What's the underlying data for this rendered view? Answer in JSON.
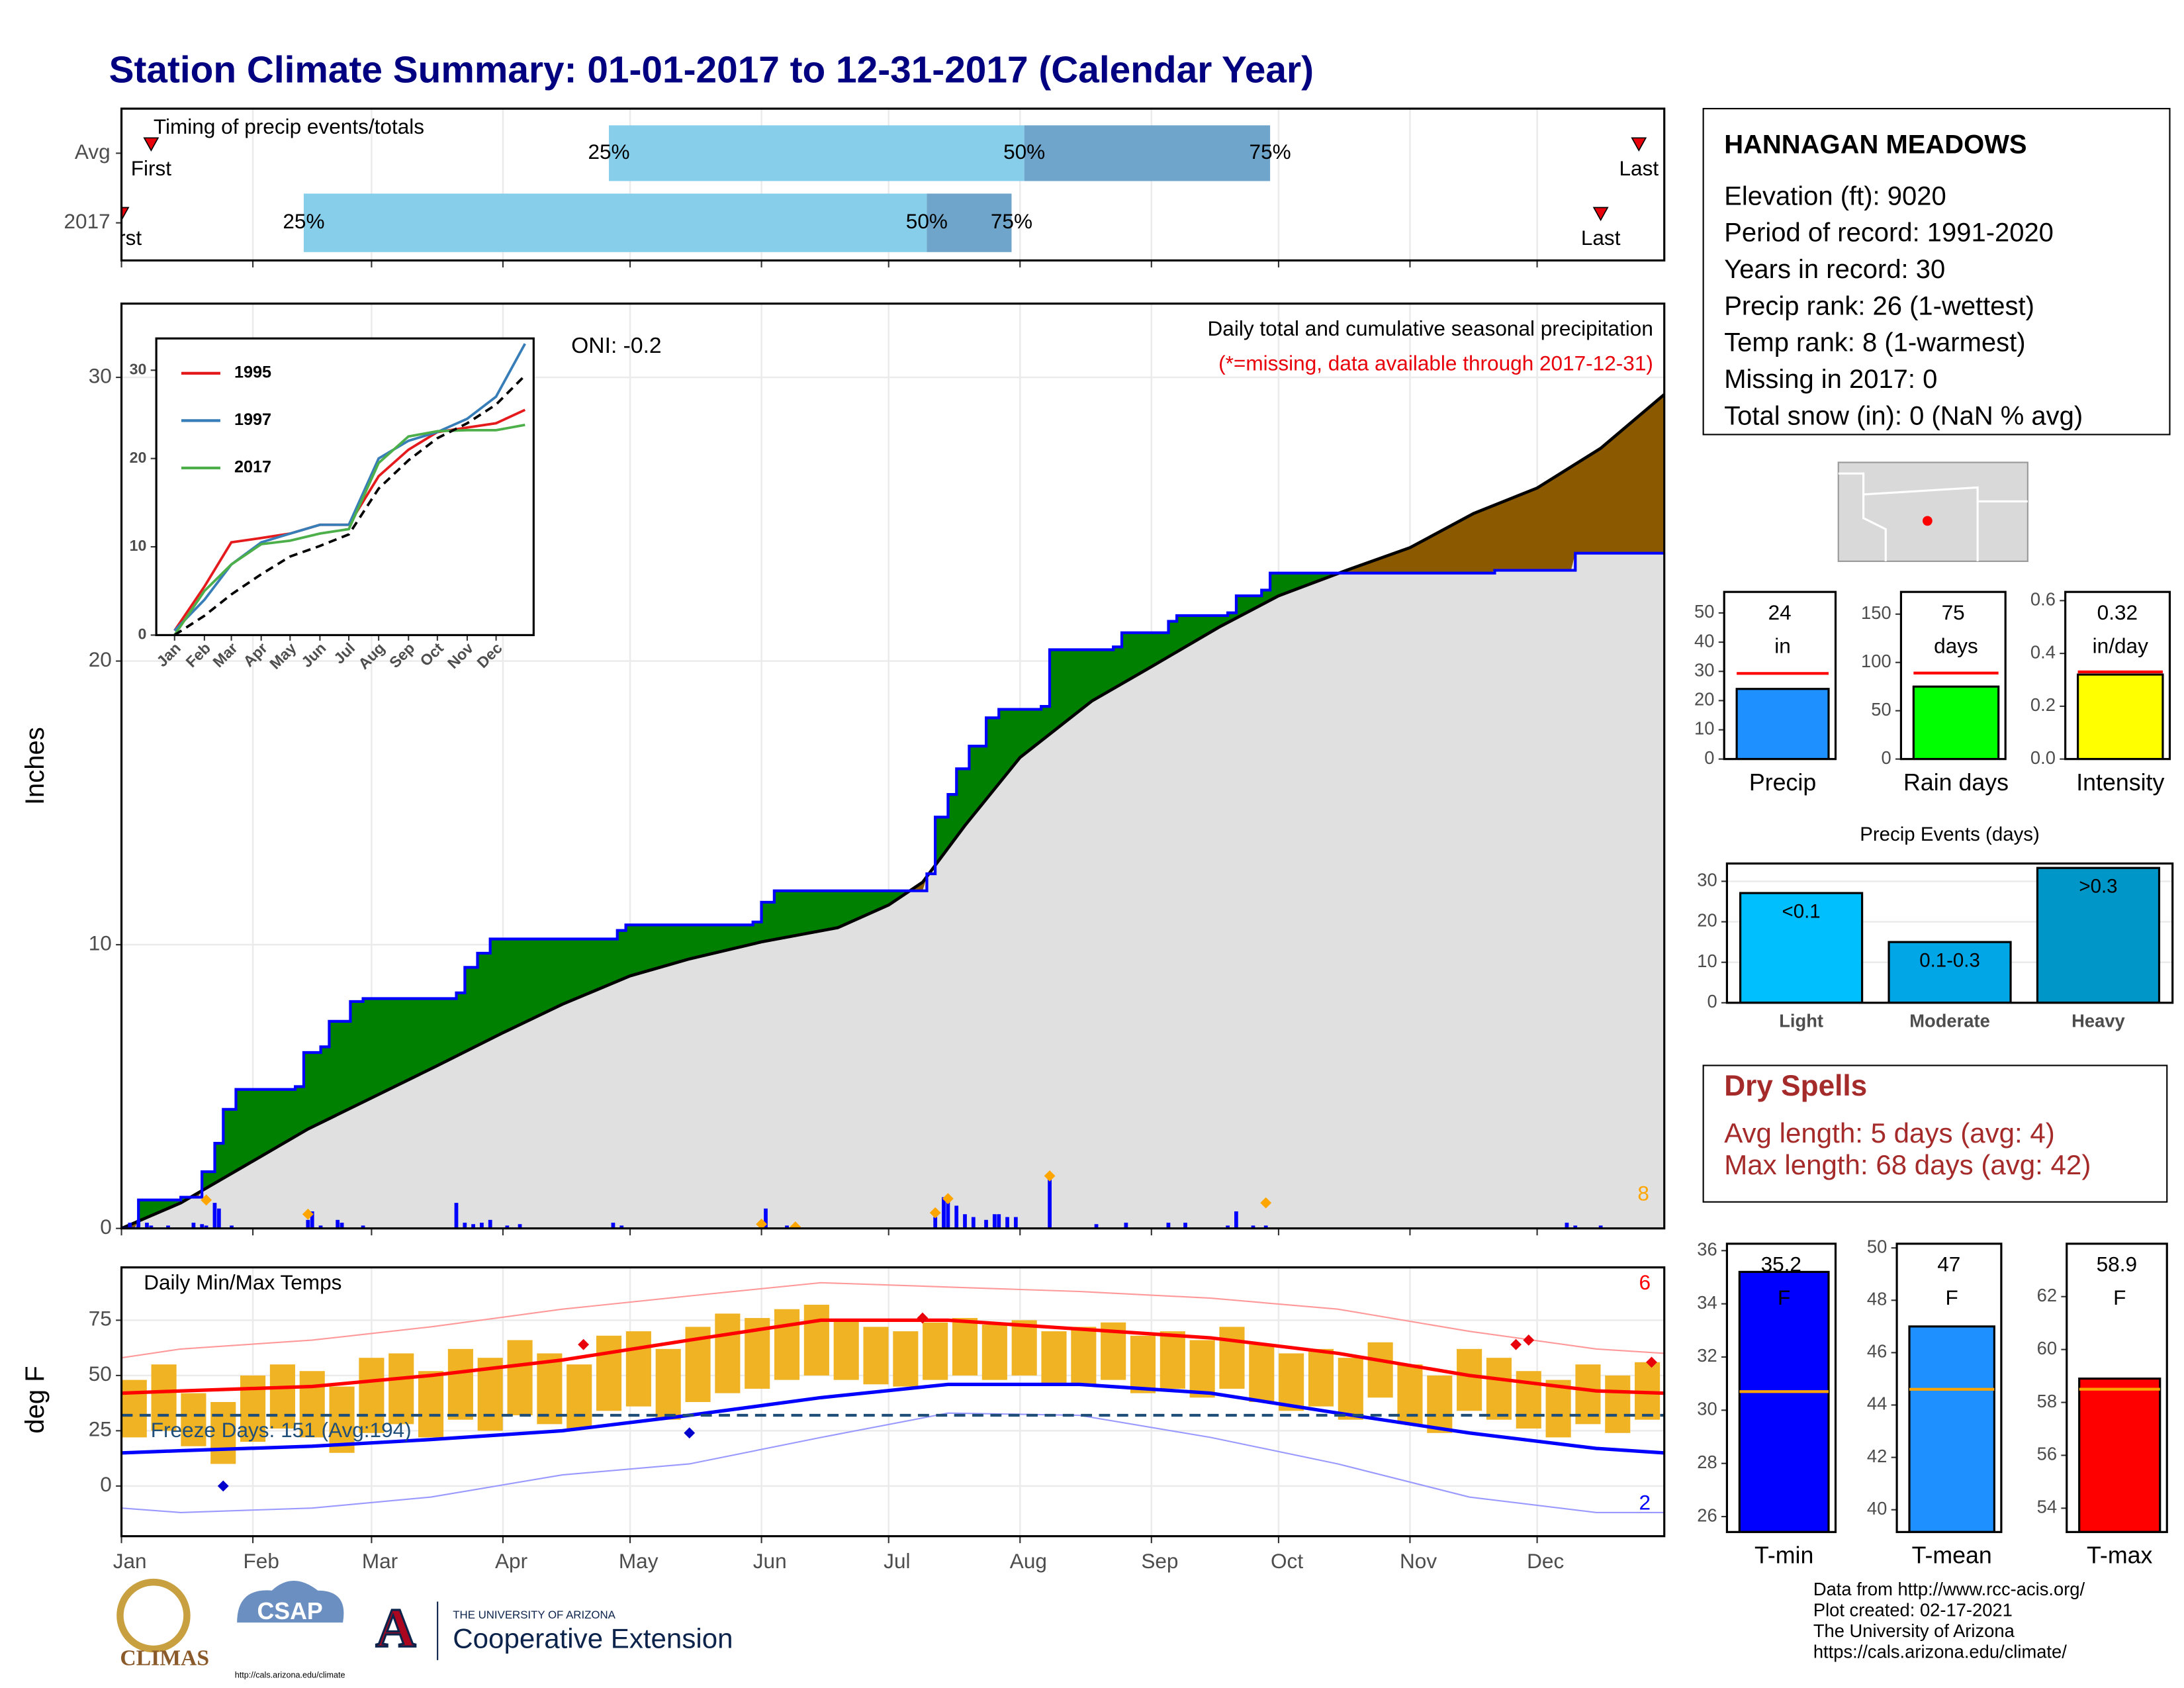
{
  "title": "Station Climate Summary: 01-01-2017 to 12-31-2017 (Calendar Year)",
  "station": {
    "name": "HANNAGAN MEADOWS",
    "lines": [
      "Elevation (ft): 9020",
      "Period of record: 1991-2020",
      "Years in record: 30",
      "Precip rank: 26 (1-wettest)",
      "Temp rank: 8 (1-warmest)",
      "Missing in 2017: 0",
      "Total snow (in): 0 (NaN % avg)"
    ]
  },
  "dry_spells": {
    "title": "Dry Spells",
    "lines": [
      "Avg length: 5 days (avg: 4)",
      "Max length: 68 days (avg: 42)"
    ]
  },
  "footer": [
    "Data from http://www.rcc-acis.org/",
    "Plot created: 02-17-2021",
    "The University of Arizona",
    "https://cals.arizona.edu/climate/"
  ],
  "logos": {
    "climas": "CLIMAS",
    "csap": "CSAP",
    "csap_url": "http://cals.arizona.edu/climate",
    "university": "THE UNIVERSITY OF ARIZONA",
    "extension": "Cooperative Extension"
  },
  "chart_data": [
    {
      "type": "timing",
      "title": "Timing of precip events/totals",
      "categories": [
        "Avg",
        "2017"
      ],
      "markers": [
        "First",
        "25%",
        "50%",
        "75%",
        "Last"
      ],
      "values": [
        [
          8,
          116,
          214,
          272,
          359
        ],
        [
          1,
          44,
          191,
          211,
          350
        ]
      ],
      "colors": [
        "#87ceeb",
        "#6fa5cb"
      ],
      "marker_color": "#e8000b",
      "xlim": [
        1,
        365
      ],
      "grid": true
    },
    {
      "type": "area",
      "ylabel": "Inches",
      "xlim": [
        1,
        365
      ],
      "ylim": [
        0,
        32.6
      ],
      "yticks": [
        0,
        10,
        20,
        30
      ],
      "grid": true,
      "annotations": [
        "ONI: -0.2",
        "Daily total and cumulative seasonal precipitation",
        "(*=missing, data available through 2017-12-31)"
      ],
      "series": [
        {
          "color": "#0000ff",
          "x": [
            1,
            5,
            15,
            20,
            23,
            25,
            28,
            42,
            44,
            48,
            50,
            55,
            58,
            80,
            82,
            85,
            88,
            118,
            120,
            150,
            152,
            155,
            190,
            191,
            193,
            196,
            198,
            201,
            205,
            208,
            218,
            220,
            235,
            237,
            248,
            250,
            262,
            264,
            270,
            272,
            290,
            325,
            342,
            344,
            365
          ],
          "values": [
            0,
            1.0,
            1.1,
            2.0,
            3.0,
            4.2,
            4.9,
            5.0,
            6.2,
            6.4,
            7.3,
            8.0,
            8.1,
            8.3,
            9.2,
            9.7,
            10.2,
            10.5,
            10.7,
            10.8,
            11.5,
            11.9,
            11.9,
            12.5,
            14.5,
            15.3,
            16.2,
            17.0,
            18.0,
            18.3,
            18.4,
            20.4,
            20.5,
            21.0,
            21.4,
            21.6,
            21.7,
            22.3,
            22.5,
            23.1,
            23.1,
            23.2,
            23.2,
            23.8,
            23.8
          ]
        },
        {
          "color": "#000000",
          "x": [
            1,
            15,
            30,
            45,
            60,
            75,
            91,
            105,
            121,
            135,
            152,
            170,
            182,
            190,
            200,
            213,
            230,
            244,
            260,
            274,
            290,
            305,
            320,
            335,
            350,
            365
          ],
          "values": [
            0,
            0.9,
            2.2,
            3.5,
            4.6,
            5.7,
            6.9,
            7.9,
            8.9,
            9.5,
            10.1,
            10.6,
            11.4,
            12.2,
            14.2,
            16.6,
            18.6,
            19.8,
            21.2,
            22.3,
            23.2,
            24.0,
            25.2,
            26.1,
            27.5,
            29.4
          ]
        }
      ],
      "fill_colors": {
        "above": "#008000",
        "below": "#8b5a00",
        "base": "#e0e0e0"
      },
      "daily": {
        "color": "#0000ff",
        "x": [
          3,
          5,
          7,
          8,
          12,
          18,
          20,
          21,
          23,
          24,
          27,
          45,
          46,
          48,
          52,
          53,
          58,
          80,
          82,
          84,
          86,
          88,
          92,
          95,
          117,
          119,
          152,
          153,
          158,
          160,
          193,
          195,
          196,
          198,
          200,
          202,
          205,
          207,
          208,
          210,
          212,
          220,
          231,
          238,
          248,
          252,
          262,
          264,
          268,
          271,
          342,
          344,
          350
        ],
        "values": [
          0.2,
          0.3,
          0.2,
          0.1,
          0.1,
          0.2,
          0.15,
          0.1,
          0.9,
          0.7,
          0.1,
          0.3,
          0.6,
          0.1,
          0.3,
          0.2,
          0.1,
          0.9,
          0.2,
          0.15,
          0.2,
          0.3,
          0.1,
          0.15,
          0.2,
          0.1,
          0.25,
          0.7,
          0.1,
          0.05,
          0.4,
          1.1,
          1.0,
          0.8,
          0.5,
          0.4,
          0.3,
          0.5,
          0.5,
          0.4,
          0.4,
          1.8,
          0.15,
          0.2,
          0.2,
          0.2,
          0.1,
          0.6,
          0.1,
          0.1,
          0.2,
          0.1,
          0.1
        ]
      },
      "highlight": {
        "color": "#ffa500",
        "x": [
          21,
          45,
          152,
          160,
          193,
          196,
          220,
          271
        ],
        "values": [
          1.0,
          0.5,
          0.15,
          0.05,
          0.55,
          1.05,
          1.85,
          0.9
        ]
      },
      "highlight_count": 8
    },
    {
      "type": "range",
      "title": "Daily Min/Max Temps",
      "ylabel": "deg F",
      "xlim": [
        1,
        365
      ],
      "ylim": [
        -22.7,
        98.9
      ],
      "yticks": [
        0,
        25,
        50,
        75
      ],
      "grid": true,
      "xticks": [
        {
          "value": 1,
          "label": "Jan"
        },
        {
          "value": 32,
          "label": "Feb"
        },
        {
          "value": 60,
          "label": "Mar"
        },
        {
          "value": 91,
          "label": "Apr"
        },
        {
          "value": 121,
          "label": "May"
        },
        {
          "value": 152,
          "label": "Jun"
        },
        {
          "value": 182,
          "label": "Jul"
        },
        {
          "value": 213,
          "label": "Aug"
        },
        {
          "value": 244,
          "label": "Sep"
        },
        {
          "value": 274,
          "label": "Oct"
        },
        {
          "value": 305,
          "label": "Nov"
        },
        {
          "value": 335,
          "label": "Dec"
        }
      ],
      "bars": {
        "color": "#f0b323",
        "x": [
          4,
          11,
          18,
          25,
          32,
          39,
          46,
          53,
          60,
          67,
          74,
          81,
          88,
          95,
          102,
          109,
          116,
          123,
          130,
          137,
          144,
          151,
          158,
          165,
          172,
          179,
          186,
          193,
          200,
          207,
          214,
          221,
          228,
          235,
          242,
          249,
          256,
          263,
          270,
          277,
          284,
          291,
          298,
          305,
          312,
          319,
          326,
          333,
          340,
          347,
          354,
          361
        ],
        "low": [
          22,
          25,
          18,
          10,
          20,
          26,
          22,
          15,
          24,
          28,
          22,
          30,
          25,
          32,
          28,
          26,
          34,
          36,
          30,
          38,
          42,
          44,
          48,
          50,
          48,
          46,
          45,
          48,
          50,
          48,
          50,
          46,
          46,
          48,
          42,
          44,
          40,
          44,
          38,
          34,
          36,
          30,
          40,
          28,
          24,
          34,
          30,
          26,
          22,
          28,
          24,
          30
        ],
        "high": [
          48,
          55,
          42,
          38,
          50,
          55,
          52,
          45,
          58,
          60,
          52,
          62,
          58,
          66,
          60,
          55,
          68,
          70,
          62,
          72,
          78,
          76,
          80,
          82,
          75,
          72,
          70,
          74,
          76,
          73,
          75,
          70,
          72,
          74,
          68,
          70,
          66,
          72,
          64,
          60,
          62,
          58,
          65,
          55,
          50,
          62,
          58,
          52,
          48,
          55,
          50,
          56
        ]
      },
      "series": [
        {
          "color": "#ff0000",
          "width": 2.5,
          "x": [
            1,
            15,
            46,
            74,
            105,
            135,
            166,
            196,
            227,
            258,
            288,
            319,
            349,
            365
          ],
          "values": [
            42,
            43,
            45,
            50,
            57,
            66,
            75,
            75,
            71,
            67,
            60,
            50,
            43,
            42
          ]
        },
        {
          "color": "#0000ff",
          "width": 2.5,
          "x": [
            1,
            15,
            46,
            74,
            105,
            135,
            166,
            196,
            227,
            258,
            288,
            319,
            349,
            365
          ],
          "values": [
            15,
            16,
            18,
            21,
            25,
            32,
            40,
            46,
            46,
            42,
            33,
            24,
            17,
            15
          ]
        },
        {
          "color": "#ff9999",
          "width": 1,
          "x": [
            1,
            15,
            46,
            74,
            105,
            135,
            166,
            196,
            227,
            258,
            288,
            319,
            349,
            365
          ],
          "values": [
            58,
            62,
            66,
            72,
            80,
            86,
            92,
            90,
            88,
            85,
            80,
            70,
            62,
            60
          ]
        },
        {
          "color": "#9999ff",
          "width": 1,
          "x": [
            1,
            15,
            46,
            74,
            105,
            135,
            166,
            196,
            227,
            258,
            288,
            319,
            349,
            365
          ],
          "values": [
            -10,
            -12,
            -10,
            -5,
            5,
            10,
            22,
            33,
            32,
            22,
            10,
            -5,
            -12,
            -12
          ]
        }
      ],
      "freeze": {
        "value": 32,
        "color": "#1f4e79"
      },
      "annotations": [
        "Freeze Days: 151 (Avg:194)"
      ],
      "counts": [
        {
          "value": 6,
          "color": "#ff0000"
        },
        {
          "value": 2,
          "color": "#0000ff"
        }
      ],
      "record_high": {
        "color": "#e8000b",
        "x": [
          110,
          190,
          330,
          333,
          362
        ],
        "values": [
          64,
          76,
          64,
          66,
          56
        ]
      },
      "record_low": {
        "color": "#0000cc",
        "x": [
          25,
          135
        ],
        "values": [
          0,
          24
        ]
      }
    },
    {
      "type": "line",
      "xlim": [
        -18,
        374
      ],
      "ylim": [
        0,
        33.6
      ],
      "yticks": [
        0,
        10,
        20,
        30
      ],
      "xticks": [
        {
          "value": 1,
          "label": "Jan"
        },
        {
          "value": 32,
          "label": "Feb"
        },
        {
          "value": 60,
          "label": "Mar"
        },
        {
          "value": 91,
          "label": "Apr"
        },
        {
          "value": 121,
          "label": "May"
        },
        {
          "value": 152,
          "label": "Jun"
        },
        {
          "value": 182,
          "label": "Jul"
        },
        {
          "value": 213,
          "label": "Aug"
        },
        {
          "value": 244,
          "label": "Sep"
        },
        {
          "value": 274,
          "label": "Oct"
        },
        {
          "value": 305,
          "label": "Nov"
        },
        {
          "value": 335,
          "label": "Dec"
        }
      ],
      "x": [
        1,
        32,
        60,
        91,
        121,
        152,
        182,
        213,
        244,
        274,
        305,
        335,
        365
      ],
      "series": [
        {
          "name": "1995",
          "color": "#e41a1c",
          "values": [
            0.5,
            5.5,
            10.5,
            11,
            11.5,
            12.5,
            12.5,
            18,
            21,
            23,
            23.5,
            24,
            25.5
          ]
        },
        {
          "name": "1997",
          "color": "#377eb8",
          "values": [
            0.5,
            4,
            8,
            10.5,
            11.5,
            12.5,
            12.5,
            20,
            22,
            23,
            24.5,
            27,
            33
          ]
        },
        {
          "name": "2017",
          "color": "#4daf4a",
          "values": [
            0,
            5,
            8,
            10.3,
            10.7,
            11.5,
            12,
            19.5,
            22.5,
            23.1,
            23.2,
            23.2,
            23.8
          ]
        },
        {
          "color": "#000000",
          "dash": true,
          "values": [
            0,
            2.2,
            4.6,
            6.9,
            8.9,
            10.1,
            11.4,
            16.6,
            19.8,
            22.3,
            24,
            26.1,
            29.4
          ]
        }
      ]
    },
    {
      "type": "bar",
      "categories": [
        "Precip"
      ],
      "values": [
        24
      ],
      "value_labels": [
        "24 in"
      ],
      "color": "#1e90ff",
      "normal": 29.3,
      "normal_color": "#ff0000",
      "ylim": [
        0,
        57.2
      ],
      "yticks": [
        0,
        10,
        20,
        30,
        40,
        50
      ]
    },
    {
      "type": "bar",
      "categories": [
        "Rain days"
      ],
      "values": [
        75
      ],
      "value_labels": [
        "75 days"
      ],
      "color": "#00ff00",
      "normal": 89,
      "normal_color": "#ff0000",
      "ylim": [
        0,
        173
      ],
      "yticks": [
        0,
        50,
        100,
        150
      ]
    },
    {
      "type": "bar",
      "categories": [
        "Intensity"
      ],
      "values": [
        0.32
      ],
      "value_labels": [
        "0.32 in/day"
      ],
      "color": "#ffff00",
      "normal": 0.33,
      "normal_color": "#ff0000",
      "ylim": [
        0,
        0.633
      ],
      "yticks": [
        {
          "value": 0,
          "label": "0.0"
        },
        0.2,
        0.4,
        0.6
      ]
    },
    {
      "type": "bar",
      "title": "Precip Events (days)",
      "categories": [
        "Light",
        "Moderate",
        "Heavy"
      ],
      "values": [
        27.1,
        15,
        33.3
      ],
      "bar_labels": [
        "<0.1",
        "0.1-0.3",
        ">0.3"
      ],
      "colors": [
        "#00bfff",
        "#00a6e6",
        "#0096c8"
      ],
      "ylim": [
        0,
        34.4
      ],
      "yticks": [
        0,
        10,
        20,
        30
      ]
    },
    {
      "type": "bar",
      "categories": [
        "T-min"
      ],
      "values": [
        35.2
      ],
      "value_labels": [
        "35.2 F"
      ],
      "color": "#0000ff",
      "normal": 30.7,
      "normal_color": "#ffa500",
      "ylim": [
        25.42,
        36.26
      ],
      "yticks": [
        26,
        28,
        30,
        32,
        34,
        36
      ]
    },
    {
      "type": "bar",
      "categories": [
        "T-mean"
      ],
      "values": [
        47
      ],
      "value_labels": [
        "47 F"
      ],
      "color": "#1e90ff",
      "normal": 44.6,
      "normal_color": "#ffa500",
      "ylim": [
        39.15,
        50.16
      ],
      "yticks": [
        40,
        42,
        44,
        46,
        48,
        50
      ]
    },
    {
      "type": "bar",
      "categories": [
        "T-max"
      ],
      "values": [
        58.9
      ],
      "value_labels": [
        "58.9 F"
      ],
      "color": "#ff0000",
      "normal": 58.5,
      "normal_color": "#ffa500",
      "ylim": [
        53.1,
        64.0
      ],
      "yticks": [
        54,
        56,
        58,
        60,
        62
      ]
    }
  ]
}
